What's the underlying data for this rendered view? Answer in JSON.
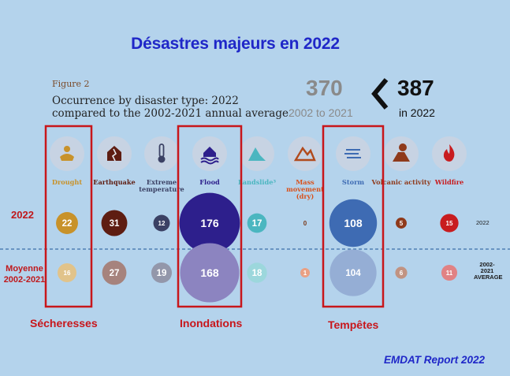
{
  "main_title": "Désastres majeurs en 2022",
  "figure_label": "Figure 2",
  "figure_title_line1": "Occurrence by disaster type: 2022",
  "figure_title_line2": "compared to the 2002-2021 annual average",
  "average_total": "370",
  "average_period": "2002 to 2021",
  "current_total": "387",
  "current_period": "in 2022",
  "row_labels": {
    "current": "2022",
    "average_line1": "Moyenne",
    "average_line2": "2002-2021",
    "right_current": "2022",
    "right_average_line1": "2002-",
    "right_average_line2": "2021",
    "right_average_line3": "AVERAGE"
  },
  "captions": {
    "drought": "Sécheresses",
    "flood": "Inondations",
    "storm": "Tempêtes"
  },
  "source": "EMDAT Report 2022",
  "icons": [
    "drought-icon",
    "earthquake-icon",
    "thermometer-icon",
    "flood-icon",
    "landslide-icon",
    "mass-movement-icon",
    "storm-icon",
    "volcano-icon",
    "wildfire-icon"
  ],
  "colors": {
    "drought": "#c8922a",
    "earthquake": "#5e1d12",
    "extreme_temperature": "#3b4164",
    "flood": "#2d1f8c",
    "landslide": "#4bb6c0",
    "mass_movement": "#d8531e",
    "storm": "#3e6bb3",
    "volcanic_activity": "#8f3a1b",
    "wildfire": "#c81c1f",
    "highlight_box": "#c8161b"
  },
  "chart_data": {
    "type": "bubble",
    "categories": [
      "Drought",
      "Earthquake",
      "Extreme temperature",
      "Flood",
      "Landslide³",
      "Mass movement (dry)",
      "Storm",
      "Volcanic activity",
      "Wildfire"
    ],
    "series": [
      {
        "name": "2022",
        "values": [
          22,
          31,
          12,
          176,
          17,
          0,
          108,
          5,
          15
        ]
      },
      {
        "name": "2002-2021 AVERAGE",
        "values": [
          16,
          27,
          19,
          168,
          18,
          1,
          104,
          6,
          11
        ]
      }
    ],
    "highlighted": [
      "Drought",
      "Flood",
      "Storm"
    ]
  }
}
